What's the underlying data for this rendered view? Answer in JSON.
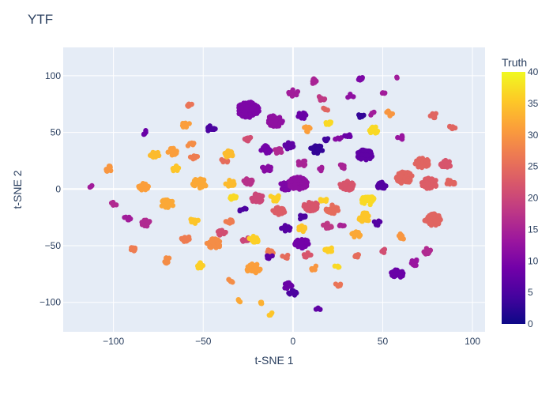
{
  "chart_data": {
    "type": "scatter",
    "title": "YTF",
    "xlabel": "t-SNE 1",
    "ylabel": "t-SNE 2",
    "xlim": [
      -128,
      107
    ],
    "ylim": [
      -126,
      125
    ],
    "x_ticks": [
      -100,
      -50,
      0,
      50,
      100
    ],
    "y_ticks": [
      -100,
      -50,
      0,
      50,
      100
    ],
    "grid": true,
    "plot_background": "#e5ecf6",
    "colorbar": {
      "title": "Truth",
      "range": [
        0,
        40
      ],
      "ticks": [
        0,
        5,
        10,
        15,
        20,
        25,
        30,
        35,
        40
      ],
      "colorscale": [
        "#0d0887",
        "#46039f",
        "#7201a8",
        "#9c179e",
        "#bd3786",
        "#d8576b",
        "#ed7953",
        "#fb9f3a",
        "#fdca26",
        "#f0f921"
      ]
    },
    "clusters": [
      {
        "x": -112,
        "y": 3,
        "truth": 14,
        "n": 3
      },
      {
        "x": -103,
        "y": 18,
        "truth": 30,
        "n": 10
      },
      {
        "x": -100,
        "y": -13,
        "truth": 16,
        "n": 5
      },
      {
        "x": -92,
        "y": -26,
        "truth": 14,
        "n": 8
      },
      {
        "x": -88,
        "y": -53,
        "truth": 27,
        "n": 10
      },
      {
        "x": -83,
        "y": 2,
        "truth": 31,
        "n": 20
      },
      {
        "x": -82,
        "y": -30,
        "truth": 16,
        "n": 12
      },
      {
        "x": -82,
        "y": 50,
        "truth": 8,
        "n": 6
      },
      {
        "x": -77,
        "y": 30,
        "truth": 34,
        "n": 16
      },
      {
        "x": -70,
        "y": -13,
        "truth": 32,
        "n": 30
      },
      {
        "x": -70,
        "y": -63,
        "truth": 29,
        "n": 8
      },
      {
        "x": -67,
        "y": 33,
        "truth": 31,
        "n": 16
      },
      {
        "x": -65,
        "y": 18,
        "truth": 35,
        "n": 10
      },
      {
        "x": -60,
        "y": 57,
        "truth": 31,
        "n": 10
      },
      {
        "x": -60,
        "y": -44,
        "truth": 27,
        "n": 12
      },
      {
        "x": -58,
        "y": 75,
        "truth": 26,
        "n": 6
      },
      {
        "x": -57,
        "y": 40,
        "truth": 29,
        "n": 8
      },
      {
        "x": -55,
        "y": -28,
        "truth": 35,
        "n": 10
      },
      {
        "x": -55,
        "y": 28,
        "truth": 27,
        "n": 8
      },
      {
        "x": -52,
        "y": 5,
        "truth": 32,
        "n": 40
      },
      {
        "x": -52,
        "y": -67,
        "truth": 36,
        "n": 14
      },
      {
        "x": -45,
        "y": 53,
        "truth": 5,
        "n": 16
      },
      {
        "x": -44,
        "y": -48,
        "truth": 29,
        "n": 40
      },
      {
        "x": -40,
        "y": -38,
        "truth": 21,
        "n": 12
      },
      {
        "x": -38,
        "y": 25,
        "truth": 25,
        "n": 6
      },
      {
        "x": -36,
        "y": 31,
        "truth": 34,
        "n": 16
      },
      {
        "x": -35,
        "y": -81,
        "truth": 29,
        "n": 6
      },
      {
        "x": -35,
        "y": -28,
        "truth": 27,
        "n": 12
      },
      {
        "x": -35,
        "y": 5,
        "truth": 34,
        "n": 14
      },
      {
        "x": -33,
        "y": -8,
        "truth": 37,
        "n": 10
      },
      {
        "x": -30,
        "y": -99,
        "truth": 32,
        "n": 4
      },
      {
        "x": -28,
        "y": -18,
        "truth": 5,
        "n": 6
      },
      {
        "x": -26,
        "y": -45,
        "truth": 20,
        "n": 10
      },
      {
        "x": -25,
        "y": 45,
        "truth": 21,
        "n": 10
      },
      {
        "x": -25,
        "y": 6,
        "truth": 17,
        "n": 20
      },
      {
        "x": -25,
        "y": 70,
        "truth": 10,
        "n": 120
      },
      {
        "x": -22,
        "y": -70,
        "truth": 31,
        "n": 40
      },
      {
        "x": -22,
        "y": -45,
        "truth": 36,
        "n": 20
      },
      {
        "x": -20,
        "y": -8,
        "truth": 20,
        "n": 30
      },
      {
        "x": -18,
        "y": -100,
        "truth": 33,
        "n": 4
      },
      {
        "x": -15,
        "y": 18,
        "truth": 11,
        "n": 18
      },
      {
        "x": -15,
        "y": 35,
        "truth": 9,
        "n": 20
      },
      {
        "x": -13,
        "y": -56,
        "truth": 27,
        "n": 8
      },
      {
        "x": -13,
        "y": -60,
        "truth": 7,
        "n": 8
      },
      {
        "x": -12,
        "y": -110,
        "truth": 35,
        "n": 4
      },
      {
        "x": -10,
        "y": -8,
        "truth": 36,
        "n": 18
      },
      {
        "x": -10,
        "y": 60,
        "truth": 12,
        "n": 60
      },
      {
        "x": -8,
        "y": 33,
        "truth": 16,
        "n": 14
      },
      {
        "x": -8,
        "y": -20,
        "truth": 23,
        "n": 30
      },
      {
        "x": -4,
        "y": 3,
        "truth": 10,
        "n": 30
      },
      {
        "x": -4,
        "y": -60,
        "truth": 25,
        "n": 6
      },
      {
        "x": -4,
        "y": -35,
        "truth": 6,
        "n": 14
      },
      {
        "x": -3,
        "y": -85,
        "truth": 8,
        "n": 14
      },
      {
        "x": -2,
        "y": 38,
        "truth": 7,
        "n": 16
      },
      {
        "x": 0,
        "y": 85,
        "truth": 14,
        "n": 16
      },
      {
        "x": 0,
        "y": -92,
        "truth": 5,
        "n": 12
      },
      {
        "x": 3,
        "y": 5,
        "truth": 12,
        "n": 80
      },
      {
        "x": 5,
        "y": -25,
        "truth": 5,
        "n": 8
      },
      {
        "x": 5,
        "y": 23,
        "truth": 15,
        "n": 12
      },
      {
        "x": 5,
        "y": 65,
        "truth": 8,
        "n": 16
      },
      {
        "x": 5,
        "y": -48,
        "truth": 9,
        "n": 40
      },
      {
        "x": 5,
        "y": -35,
        "truth": 35,
        "n": 10
      },
      {
        "x": 8,
        "y": 53,
        "truth": 31,
        "n": 8
      },
      {
        "x": 8,
        "y": -58,
        "truth": 22,
        "n": 8
      },
      {
        "x": 10,
        "y": -15,
        "truth": 22,
        "n": 40
      },
      {
        "x": 11,
        "y": 95,
        "truth": 15,
        "n": 8
      },
      {
        "x": 12,
        "y": -70,
        "truth": 30,
        "n": 6
      },
      {
        "x": 13,
        "y": 35,
        "truth": 3,
        "n": 30
      },
      {
        "x": 14,
        "y": -105,
        "truth": 7,
        "n": 4
      },
      {
        "x": 16,
        "y": 80,
        "truth": 18,
        "n": 6
      },
      {
        "x": 16,
        "y": 18,
        "truth": 14,
        "n": 4
      },
      {
        "x": 17,
        "y": -10,
        "truth": 36,
        "n": 6
      },
      {
        "x": 18,
        "y": 70,
        "truth": 24,
        "n": 4
      },
      {
        "x": 18,
        "y": 43,
        "truth": 4,
        "n": 6
      },
      {
        "x": 19,
        "y": -33,
        "truth": 18,
        "n": 12
      },
      {
        "x": 20,
        "y": -53,
        "truth": 36,
        "n": 10
      },
      {
        "x": 20,
        "y": 57,
        "truth": 37,
        "n": 8
      },
      {
        "x": 22,
        "y": -18,
        "truth": 25,
        "n": 30
      },
      {
        "x": 25,
        "y": -68,
        "truth": 37,
        "n": 4
      },
      {
        "x": 25,
        "y": 45,
        "truth": 11,
        "n": 6
      },
      {
        "x": 25,
        "y": -85,
        "truth": 26,
        "n": 6
      },
      {
        "x": 27,
        "y": -32,
        "truth": 15,
        "n": 6
      },
      {
        "x": 28,
        "y": 20,
        "truth": 15,
        "n": 8
      },
      {
        "x": 30,
        "y": 3,
        "truth": 22,
        "n": 40
      },
      {
        "x": 30,
        "y": 47,
        "truth": 8,
        "n": 6
      },
      {
        "x": 32,
        "y": 82,
        "truth": 12,
        "n": 4
      },
      {
        "x": 35,
        "y": -40,
        "truth": 32,
        "n": 14
      },
      {
        "x": 36,
        "y": -60,
        "truth": 25,
        "n": 6
      },
      {
        "x": 37,
        "y": 98,
        "truth": 10,
        "n": 6
      },
      {
        "x": 38,
        "y": 65,
        "truth": 3,
        "n": 6
      },
      {
        "x": 40,
        "y": 30,
        "truth": 7,
        "n": 50
      },
      {
        "x": 40,
        "y": -25,
        "truth": 35,
        "n": 30
      },
      {
        "x": 42,
        "y": -10,
        "truth": 37,
        "n": 40
      },
      {
        "x": 44,
        "y": 67,
        "truth": 14,
        "n": 4
      },
      {
        "x": 45,
        "y": 52,
        "truth": 37,
        "n": 14
      },
      {
        "x": 47,
        "y": -30,
        "truth": 6,
        "n": 8
      },
      {
        "x": 50,
        "y": -55,
        "truth": 21,
        "n": 6
      },
      {
        "x": 50,
        "y": 85,
        "truth": 14,
        "n": 4
      },
      {
        "x": 50,
        "y": 3,
        "truth": 6,
        "n": 20
      },
      {
        "x": 54,
        "y": 67,
        "truth": 30,
        "n": 8
      },
      {
        "x": 58,
        "y": 98,
        "truth": 14,
        "n": 2
      },
      {
        "x": 58,
        "y": -75,
        "truth": 8,
        "n": 30
      },
      {
        "x": 60,
        "y": 45,
        "truth": 13,
        "n": 8
      },
      {
        "x": 60,
        "y": -42,
        "truth": 30,
        "n": 10
      },
      {
        "x": 62,
        "y": 10,
        "truth": 24,
        "n": 60
      },
      {
        "x": 68,
        "y": -65,
        "truth": 13,
        "n": 10
      },
      {
        "x": 72,
        "y": 23,
        "truth": 24,
        "n": 40
      },
      {
        "x": 75,
        "y": -55,
        "truth": 16,
        "n": 12
      },
      {
        "x": 76,
        "y": 5,
        "truth": 23,
        "n": 50
      },
      {
        "x": 78,
        "y": -27,
        "truth": 24,
        "n": 60
      },
      {
        "x": 78,
        "y": 65,
        "truth": 24,
        "n": 10
      },
      {
        "x": 85,
        "y": 22,
        "truth": 22,
        "n": 20
      },
      {
        "x": 88,
        "y": 6,
        "truth": 24,
        "n": 14
      },
      {
        "x": 89,
        "y": 55,
        "truth": 24,
        "n": 6
      }
    ]
  }
}
